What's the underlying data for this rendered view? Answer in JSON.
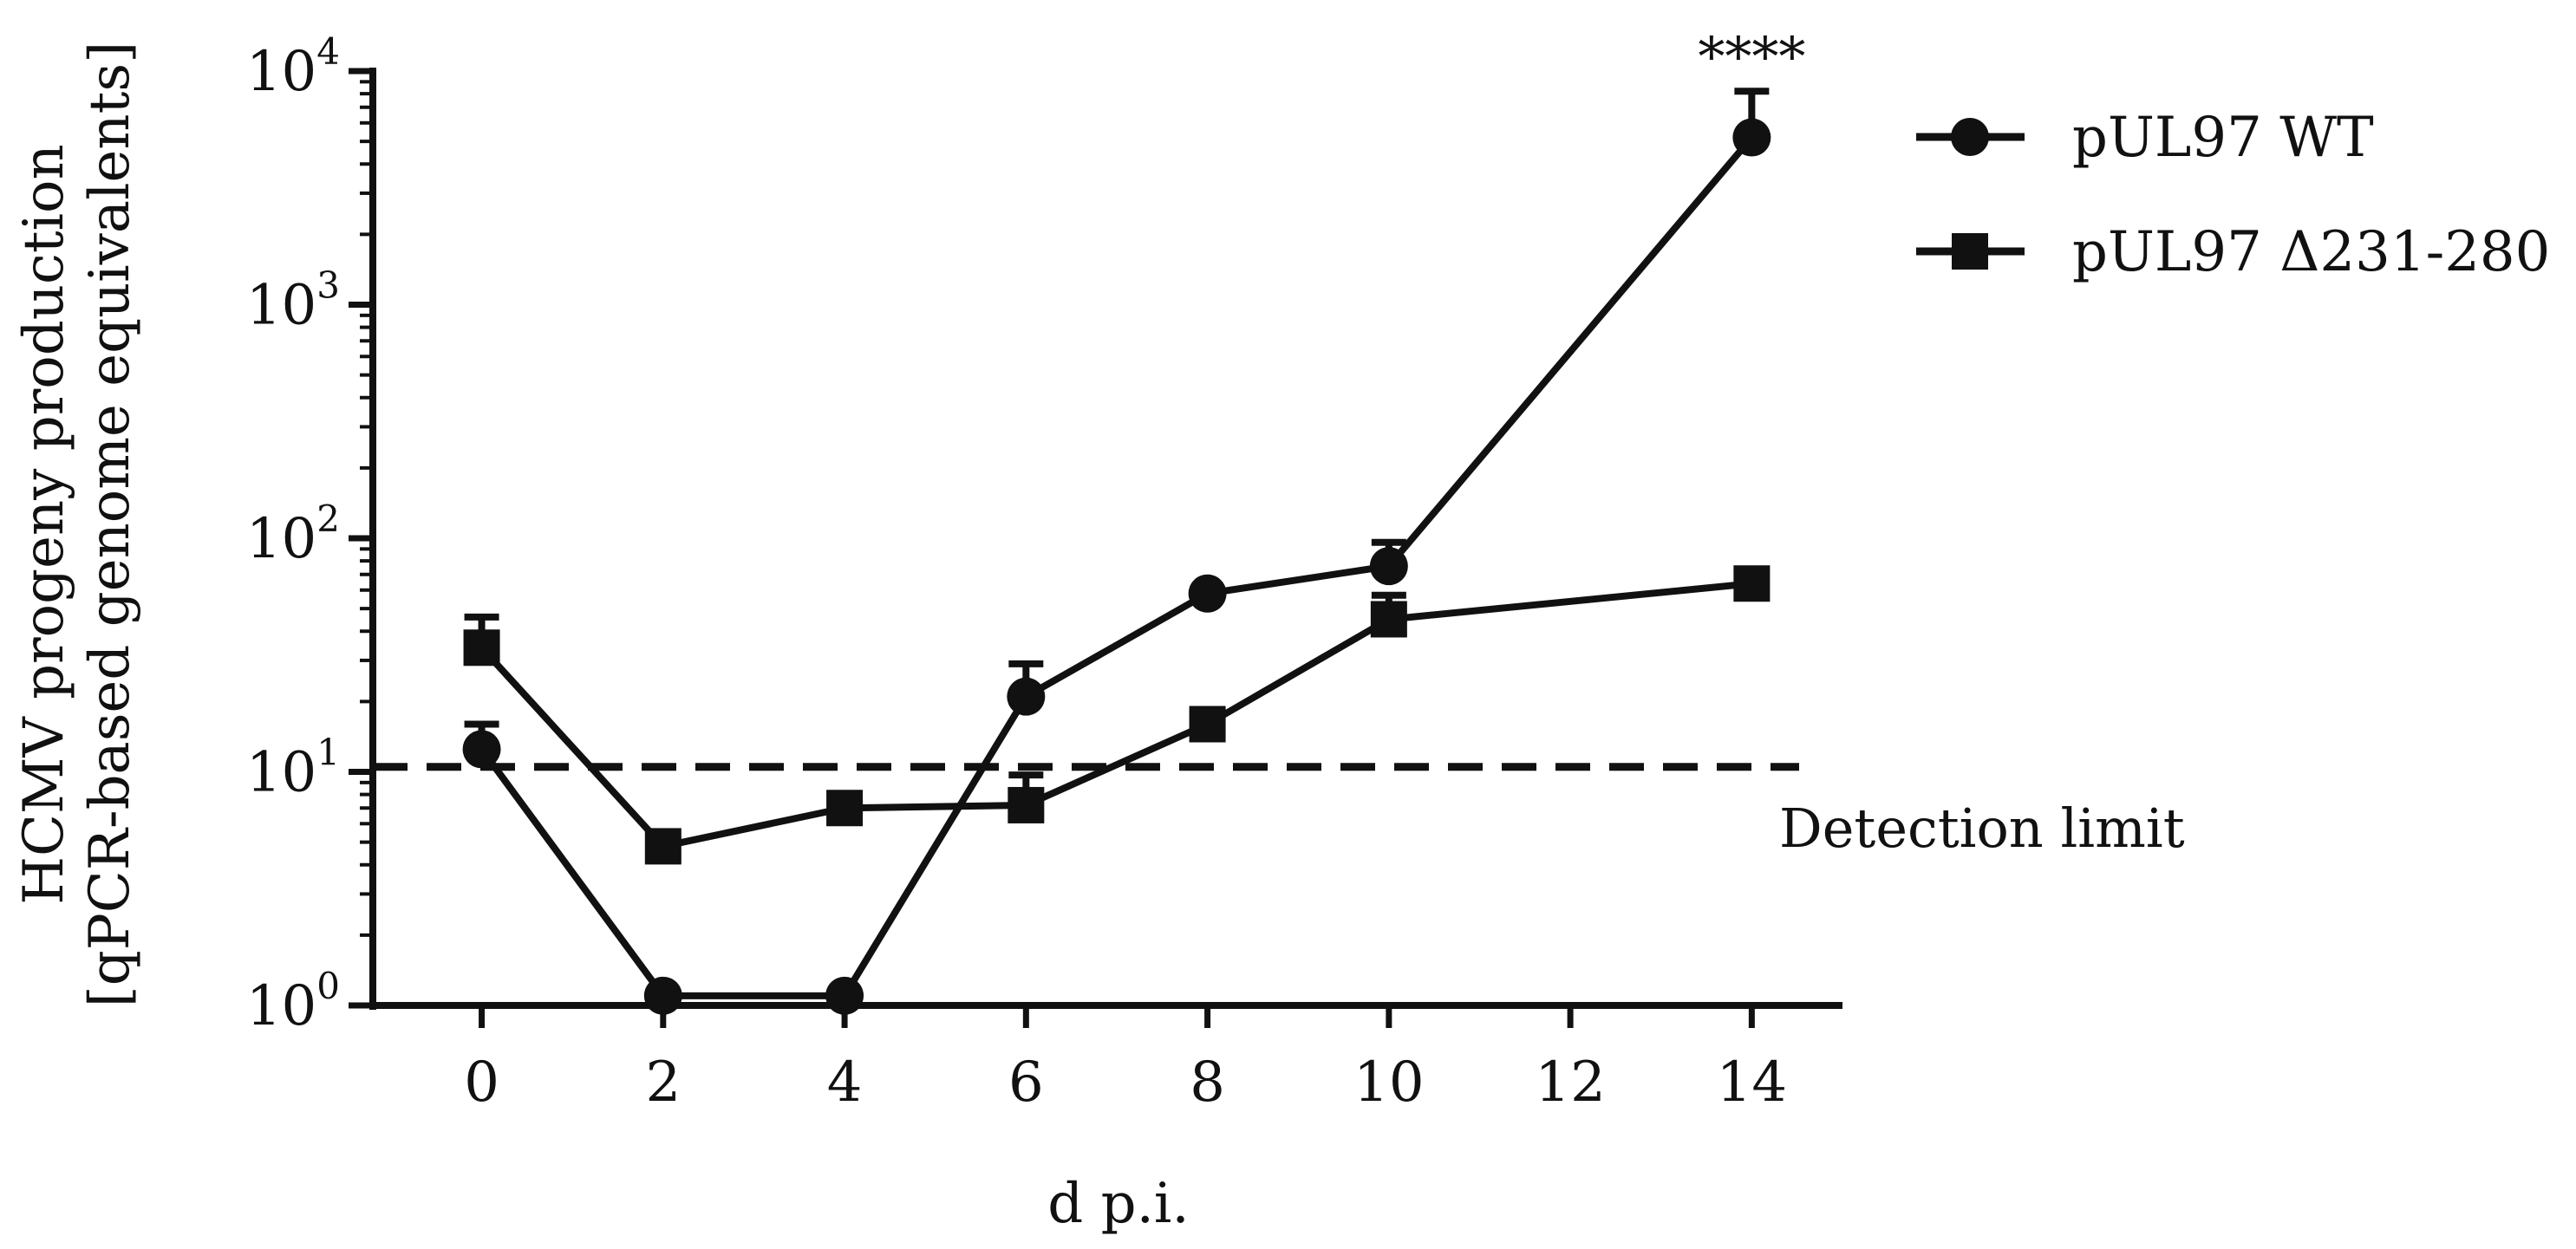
{
  "chart_data": {
    "type": "line",
    "y_scale": "log",
    "ylabel_line1": "HCMV progeny production",
    "ylabel_line2": "[qPCR-based genome equivalents]",
    "xlabel": "d p.i.",
    "xlim": [
      -1.2,
      15
    ],
    "ylim": [
      1,
      10000
    ],
    "x_ticks": [
      0,
      2,
      4,
      6,
      8,
      10,
      12,
      14
    ],
    "y_ticks": [
      {
        "value": 1,
        "base": "10",
        "exp": "0"
      },
      {
        "value": 10,
        "base": "10",
        "exp": "1"
      },
      {
        "value": 100,
        "base": "10",
        "exp": "2"
      },
      {
        "value": 1000,
        "base": "10",
        "exp": "3"
      },
      {
        "value": 10000,
        "base": "10",
        "exp": "4"
      }
    ],
    "series": [
      {
        "name": "pUL97 WT",
        "marker": "circle",
        "x": [
          0,
          2,
          4,
          6,
          8,
          10,
          14
        ],
        "y": [
          12.5,
          1.1,
          1.1,
          21,
          58,
          76,
          5200
        ],
        "err": [
          3.5,
          0,
          0,
          8,
          0,
          20,
          3000
        ]
      },
      {
        "name": "pUL97 Δ231-280",
        "marker": "square",
        "x": [
          0,
          2,
          4,
          6,
          8,
          10,
          14
        ],
        "y": [
          34,
          4.8,
          7,
          7.2,
          16,
          45,
          64
        ],
        "err": [
          12,
          0,
          0,
          2.5,
          2.5,
          12,
          0
        ]
      }
    ],
    "reference_line": {
      "y": 10.5,
      "label": "Detection limit",
      "style": "dashed"
    },
    "annotations": [
      {
        "x": 14,
        "text": "****"
      }
    ],
    "legend_placement": "top-right",
    "grid": false,
    "color": "#111111"
  }
}
